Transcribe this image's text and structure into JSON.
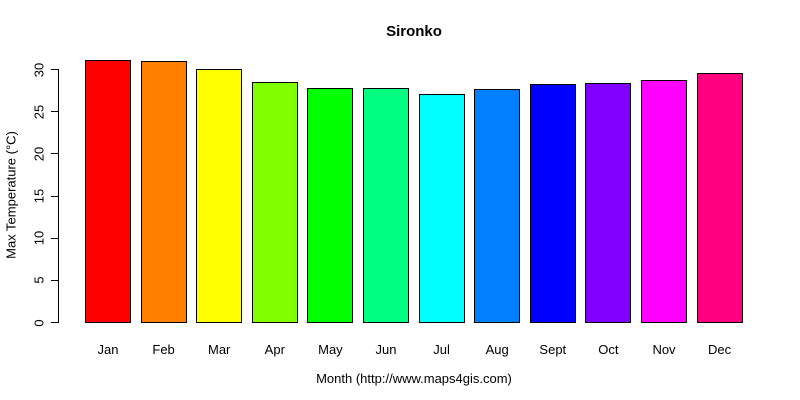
{
  "chart_data": {
    "type": "bar",
    "title": "Sironko",
    "xlabel": "Month (http://www.maps4gis.com)",
    "ylabel": "Max Temperature (°C)",
    "categories": [
      "Jan",
      "Feb",
      "Mar",
      "Apr",
      "May",
      "Jun",
      "Jul",
      "Aug",
      "Sept",
      "Oct",
      "Nov",
      "Dec"
    ],
    "values": [
      31.1,
      30.9,
      30.0,
      28.5,
      27.8,
      27.8,
      27.0,
      27.6,
      28.2,
      28.4,
      28.7,
      29.5
    ],
    "bar_colors": [
      "#FF0000",
      "#FF8000",
      "#FFFF00",
      "#80FF00",
      "#00FF00",
      "#00FF80",
      "#00FFFF",
      "#0080FF",
      "#0000FF",
      "#8000FF",
      "#FF00FF",
      "#FF0080"
    ],
    "yticks": [
      0,
      5,
      10,
      15,
      20,
      25,
      30
    ],
    "ylim": [
      0,
      31.6
    ],
    "grid": false,
    "legend": "none",
    "bar_border_color": "#000000",
    "axis_color": "#000000",
    "text_color": "#000000",
    "background_color": "#FFFFFF"
  }
}
